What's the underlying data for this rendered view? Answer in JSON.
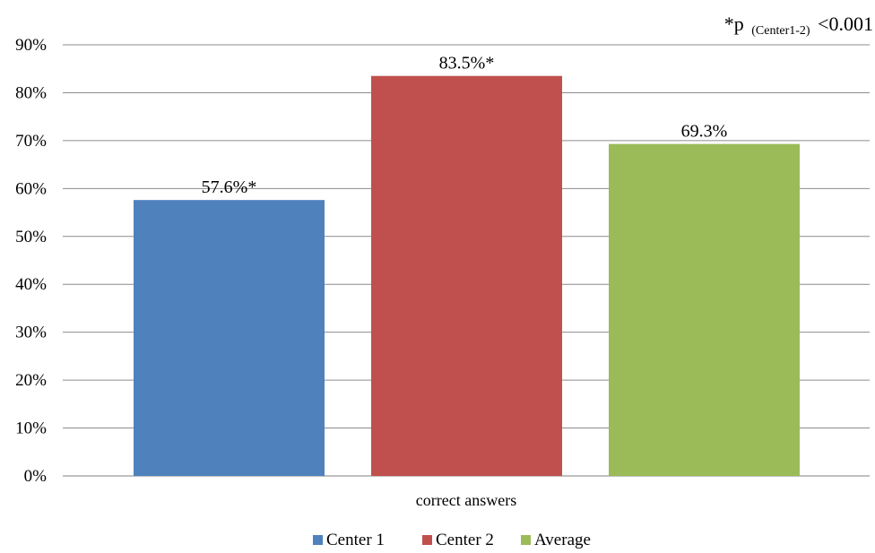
{
  "chart_data": {
    "type": "bar",
    "title": "",
    "xlabel": "",
    "ylabel": "",
    "categories": [
      "correct answers"
    ],
    "series": [
      {
        "name": "Center 1",
        "values": [
          57.6
        ],
        "label": "57.6%*",
        "color": "#4f81bd"
      },
      {
        "name": "Center 2",
        "values": [
          83.5
        ],
        "label": "83.5%*",
        "color": "#c0504d"
      },
      {
        "name": "Average",
        "values": [
          69.3
        ],
        "label": "69.3%",
        "color": "#9bbb59"
      }
    ],
    "ylim": [
      0,
      90
    ],
    "yticks": [
      0,
      10,
      20,
      30,
      40,
      50,
      60,
      70,
      80,
      90
    ],
    "ytick_suffix": "%",
    "grid": true,
    "legend_position": "bottom",
    "annotation": {
      "prefix": "*p",
      "subscript": "(Center1-2)",
      "suffix": "<0.001"
    }
  }
}
